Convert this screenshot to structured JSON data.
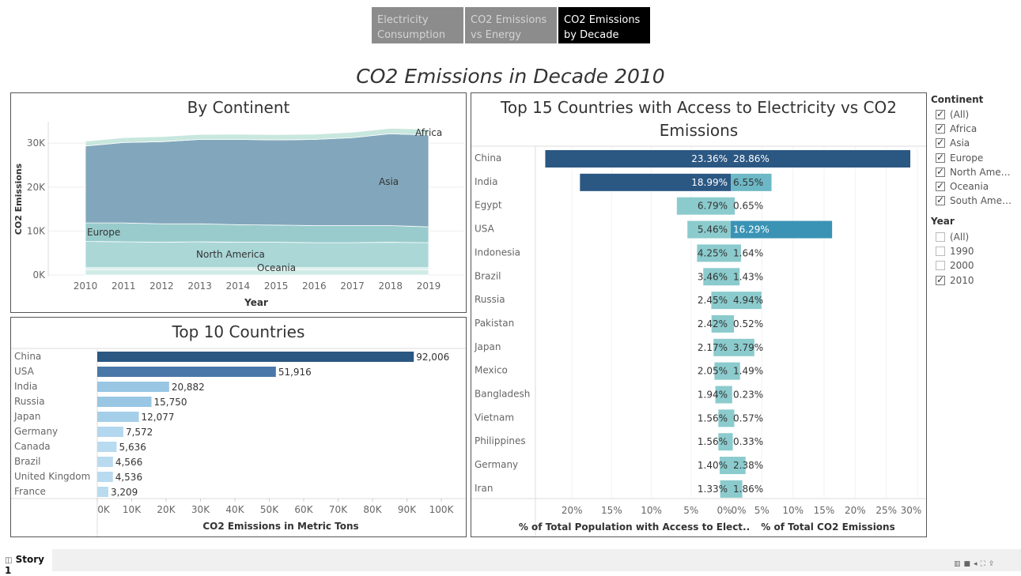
{
  "nav": [
    {
      "label_1": "Electricity",
      "label_2": "Consumption",
      "active": false
    },
    {
      "label_1": "CO2 Emissions",
      "label_2": "vs Energy",
      "active": false
    },
    {
      "label_1": "CO2 Emissions",
      "label_2": "by Decade",
      "active": true
    }
  ],
  "story_title": "CO2 Emissions in Decade 2010",
  "by_continent": {
    "title": "By Continent",
    "chart_data": {
      "type": "area",
      "title": "By Continent",
      "xlabel": "Year",
      "ylabel": "CO2 Emissions",
      "x": [
        2010,
        2011,
        2012,
        2013,
        2014,
        2015,
        2016,
        2017,
        2018,
        2019
      ],
      "y_ticks": [
        "0K",
        "10K",
        "20K",
        "30K"
      ],
      "ylim": [
        0,
        34000
      ],
      "stacked": true,
      "series": [
        {
          "name": "South America",
          "color": "#cdeae4",
          "values": [
            1200,
            1200,
            1200,
            1200,
            1200,
            1200,
            1200,
            1200,
            1200,
            1200
          ]
        },
        {
          "name": "Oceania",
          "color": "#cdeae4",
          "values": [
            450,
            450,
            450,
            450,
            450,
            450,
            450,
            450,
            450,
            450
          ]
        },
        {
          "name": "North America",
          "color": "#a6d5d5",
          "values": [
            6000,
            5900,
            5800,
            5900,
            5800,
            5800,
            5700,
            5700,
            5800,
            5700
          ]
        },
        {
          "name": "Europe",
          "color": "#93c8c9",
          "values": [
            4200,
            4300,
            4200,
            4100,
            4000,
            3900,
            3900,
            3900,
            3800,
            3600
          ]
        },
        {
          "name": "Asia",
          "color": "#7ba2b8",
          "values": [
            17500,
            18300,
            18700,
            19200,
            19400,
            19400,
            19600,
            20000,
            20900,
            20900
          ]
        },
        {
          "name": "Africa",
          "color": "#c5e6dc",
          "values": [
            1100,
            1100,
            1150,
            1150,
            1200,
            1200,
            1200,
            1250,
            1250,
            1300
          ]
        }
      ],
      "labels": [
        "Africa",
        "Asia",
        "Europe",
        "North America",
        "Oceania"
      ]
    }
  },
  "top10": {
    "title": "Top 10 Countries",
    "chart_data": {
      "type": "bar",
      "orientation": "horizontal",
      "xlabel": "CO2 Emissions in Metric Tons",
      "categories": [
        "China",
        "USA",
        "India",
        "Russia",
        "Japan",
        "Germany",
        "Canada",
        "Brazil",
        "United Kingdom",
        "France"
      ],
      "values": [
        92006,
        51916,
        20882,
        15750,
        12077,
        7572,
        5636,
        4566,
        4536,
        3209
      ],
      "value_labels": [
        "92,006",
        "51,916",
        "20,882",
        "15,750",
        "12,077",
        "7,572",
        "5,636",
        "4,566",
        "4,536",
        "3,209"
      ],
      "colors": [
        "#2b5783",
        "#4a78a8",
        "#98c6e3",
        "#98c6e3",
        "#a5cfe9",
        "#b3d7ee",
        "#b8dbf0",
        "#b8dbf0",
        "#b8dbf0",
        "#b8dbf0"
      ],
      "x_ticks": [
        "0K",
        "10K",
        "20K",
        "30K",
        "40K",
        "50K",
        "60K",
        "70K",
        "80K",
        "90K",
        "100K"
      ],
      "xlim": [
        0,
        100000
      ]
    }
  },
  "top15": {
    "title_1": "Top 15 Countries with Access to Electricity vs CO2",
    "title_2": "Emissions",
    "chart_data": {
      "type": "bar",
      "orientation": "horizontal-diverging",
      "categories": [
        "China",
        "India",
        "Egypt",
        "USA",
        "Indonesia",
        "Brazil",
        "Russia",
        "Pakistan",
        "Japan",
        "Mexico",
        "Bangladesh",
        "Vietnam",
        "Philippines",
        "Germany",
        "Iran"
      ],
      "series": [
        {
          "name": "% of Total Population with Access to Elect..",
          "values": [
            23.36,
            18.99,
            6.79,
            5.46,
            4.25,
            3.46,
            2.45,
            2.42,
            2.17,
            2.05,
            1.94,
            1.56,
            1.56,
            1.4,
            1.33
          ],
          "labels": [
            "23.36%",
            "18.99%",
            "6.79%",
            "5.46%",
            "4.25%",
            "3.46%",
            "2.45%",
            "2.42%",
            "2.17%",
            "2.05%",
            "1.94%",
            "1.56%",
            "1.56%",
            "1.40%",
            "1.33%"
          ]
        },
        {
          "name": "% of Total CO2 Emissions",
          "values": [
            28.86,
            6.55,
            0.65,
            16.29,
            1.64,
            1.43,
            4.94,
            0.52,
            3.79,
            1.49,
            0.23,
            0.57,
            0.33,
            2.38,
            1.86
          ],
          "labels": [
            "28.86%",
            "6.55%",
            "0.65%",
            "16.29%",
            "1.64%",
            "1.43%",
            "4.94%",
            "0.52%",
            "3.79%",
            "1.49%",
            "0.23%",
            "0.57%",
            "0.33%",
            "2.38%",
            "1.86%"
          ]
        }
      ],
      "left_ticks": [
        "20%",
        "15%",
        "10%",
        "5%",
        "0%"
      ],
      "right_ticks": [
        "0%",
        "5%",
        "10%",
        "15%",
        "20%",
        "25%",
        "30%"
      ],
      "left_xlabel": "% of Total Population with Access to Elect..",
      "right_xlabel": "% of Total CO2 Emissions",
      "xlim_left": [
        0,
        24.5
      ],
      "xlim_right": [
        0,
        30
      ]
    }
  },
  "filters": {
    "continent_title": "Continent",
    "continent_items": [
      {
        "label": "(All)",
        "checked": true
      },
      {
        "label": "Africa",
        "checked": true
      },
      {
        "label": "Asia",
        "checked": true
      },
      {
        "label": "Europe",
        "checked": true
      },
      {
        "label": "North Ame…",
        "checked": true
      },
      {
        "label": "Oceania",
        "checked": true
      },
      {
        "label": "South Ame…",
        "checked": true
      }
    ],
    "year_title": "Year",
    "year_items": [
      {
        "label": "(All)",
        "checked": false
      },
      {
        "label": "1990",
        "checked": false
      },
      {
        "label": "2000",
        "checked": false
      },
      {
        "label": "2010",
        "checked": true
      }
    ]
  },
  "story_tab": "Story 1"
}
